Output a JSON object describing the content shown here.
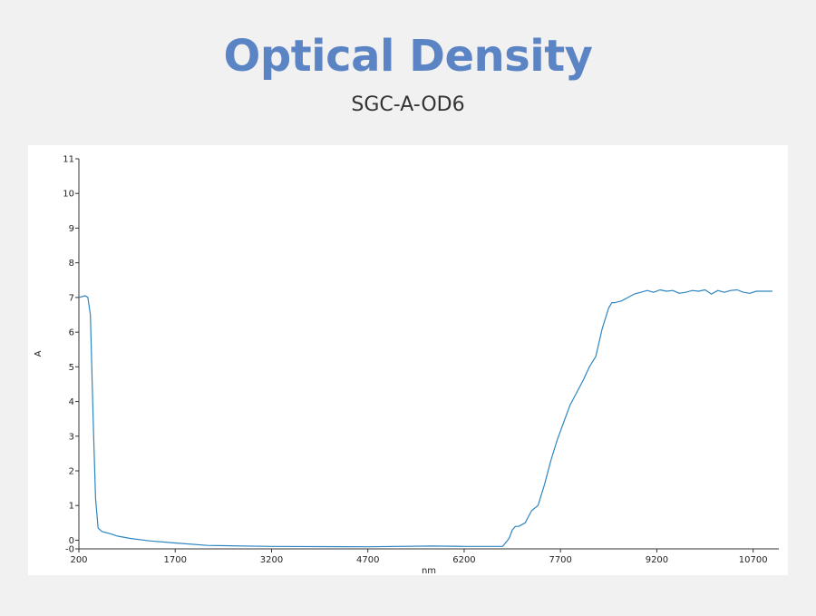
{
  "header": {
    "title": "Optical Density",
    "subtitle": "SGC-A-OD6"
  },
  "colors": {
    "title": "#5b84c4",
    "series": "#2e86c1",
    "background": "#f1f1f2"
  },
  "chart_data": {
    "type": "line",
    "xlabel": "nm",
    "ylabel": "A",
    "xlim": [
      200,
      11100
    ],
    "ylim": [
      -0.25,
      11
    ],
    "x_ticks": [
      200,
      1700,
      3200,
      4700,
      6200,
      7700,
      9200,
      10700
    ],
    "x_tick_labels": [
      "200",
      "1700",
      "3200",
      "4700",
      "6200",
      "7700",
      "9200",
      "10700"
    ],
    "y_ticks": [
      -0.25,
      0,
      1,
      2,
      3,
      4,
      5,
      6,
      7,
      8,
      9,
      10,
      11
    ],
    "y_tick_labels": [
      "-0",
      "0",
      "1",
      "2",
      "3",
      "4",
      "5",
      "6",
      "7",
      "8",
      "9",
      "10",
      "11"
    ],
    "grid": false,
    "series": [
      {
        "x": [
          200,
          300,
          340,
          380,
          400,
          430,
          460,
          500,
          560,
          620,
          700,
          800,
          1000,
          1300,
          1700,
          2200,
          3200,
          4700,
          5700,
          6200,
          6800,
          6900,
          6950,
          7000,
          7050,
          7150,
          7250,
          7350,
          7450,
          7550,
          7650,
          7750,
          7850,
          7950,
          8050,
          8150,
          8250,
          8350,
          8450,
          8500,
          8550,
          8650,
          8750,
          8850,
          8950,
          9050,
          9150,
          9250,
          9350,
          9450,
          9550,
          9650,
          9750,
          9850,
          9950,
          10050,
          10150,
          10250,
          10350,
          10450,
          10550,
          10650,
          10750,
          10850,
          10950,
          11000
        ],
        "y": [
          7.0,
          7.05,
          7.0,
          6.5,
          5.0,
          3.0,
          1.2,
          0.35,
          0.25,
          0.22,
          0.18,
          0.12,
          0.05,
          -0.02,
          -0.08,
          -0.15,
          -0.18,
          -0.19,
          -0.17,
          -0.18,
          -0.18,
          0.05,
          0.3,
          0.4,
          0.4,
          0.5,
          0.85,
          1.0,
          1.6,
          2.3,
          2.9,
          3.4,
          3.9,
          4.25,
          4.6,
          5.0,
          5.3,
          6.1,
          6.7,
          6.85,
          6.85,
          6.9,
          7.0,
          7.1,
          7.15,
          7.2,
          7.15,
          7.22,
          7.18,
          7.2,
          7.12,
          7.15,
          7.2,
          7.18,
          7.22,
          7.1,
          7.2,
          7.15,
          7.2,
          7.22,
          7.15,
          7.12,
          7.18,
          7.18,
          7.18,
          7.18
        ]
      }
    ]
  }
}
